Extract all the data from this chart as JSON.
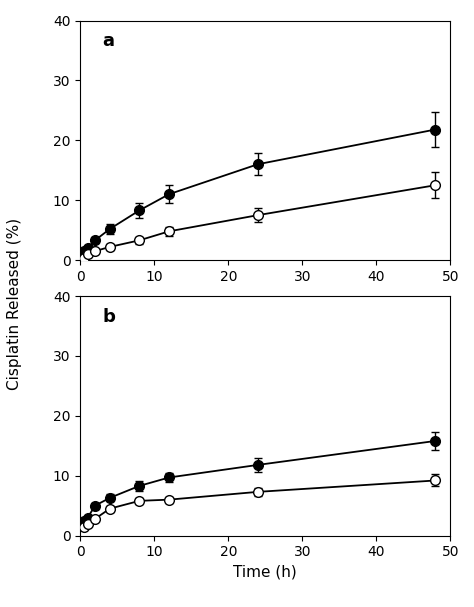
{
  "panel_a": {
    "label": "a",
    "filled": {
      "x": [
        0.5,
        1,
        2,
        4,
        8,
        12,
        24,
        48
      ],
      "y": [
        1.5,
        2.0,
        3.3,
        5.2,
        8.3,
        11.0,
        16.0,
        21.8
      ],
      "yerr": [
        0.3,
        0.4,
        0.5,
        0.8,
        1.2,
        1.5,
        1.8,
        3.0
      ]
    },
    "open": {
      "x": [
        0.5,
        1,
        2,
        4,
        8,
        12,
        24,
        48
      ],
      "y": [
        0.3,
        1.0,
        1.5,
        2.2,
        3.3,
        4.8,
        7.5,
        12.5
      ],
      "yerr": [
        0.2,
        0.3,
        0.4,
        0.5,
        0.6,
        0.8,
        1.2,
        2.2
      ]
    },
    "ylim": [
      0,
      40
    ],
    "yticks": [
      0,
      10,
      20,
      30,
      40
    ]
  },
  "panel_b": {
    "label": "b",
    "filled": {
      "x": [
        0.5,
        1,
        2,
        4,
        8,
        12,
        24,
        48
      ],
      "y": [
        2.5,
        3.0,
        5.0,
        6.3,
        8.3,
        9.7,
        11.8,
        15.8
      ],
      "yerr": [
        0.3,
        0.3,
        0.5,
        0.6,
        0.8,
        0.8,
        1.2,
        1.5
      ]
    },
    "open": {
      "x": [
        0.5,
        1,
        2,
        4,
        8,
        12,
        24,
        48
      ],
      "y": [
        1.5,
        2.0,
        2.8,
        4.5,
        5.8,
        6.0,
        7.3,
        9.2
      ],
      "yerr": [
        0.2,
        0.3,
        0.4,
        0.5,
        0.5,
        0.5,
        0.7,
        1.0
      ]
    },
    "ylim": [
      0,
      40
    ],
    "yticks": [
      0,
      10,
      20,
      30,
      40
    ]
  },
  "xlabel": "Time (h)",
  "ylabel": "Cisplatin Released (%)",
  "xlim": [
    0,
    50
  ],
  "xticks": [
    0,
    10,
    20,
    30,
    40,
    50
  ],
  "line_color": "#000000",
  "marker_size": 7,
  "linewidth": 1.3,
  "capsize": 3,
  "elinewidth": 1.0,
  "background_color": "#ffffff",
  "label_fontsize": 11,
  "tick_fontsize": 10,
  "panel_label_fontsize": 13
}
